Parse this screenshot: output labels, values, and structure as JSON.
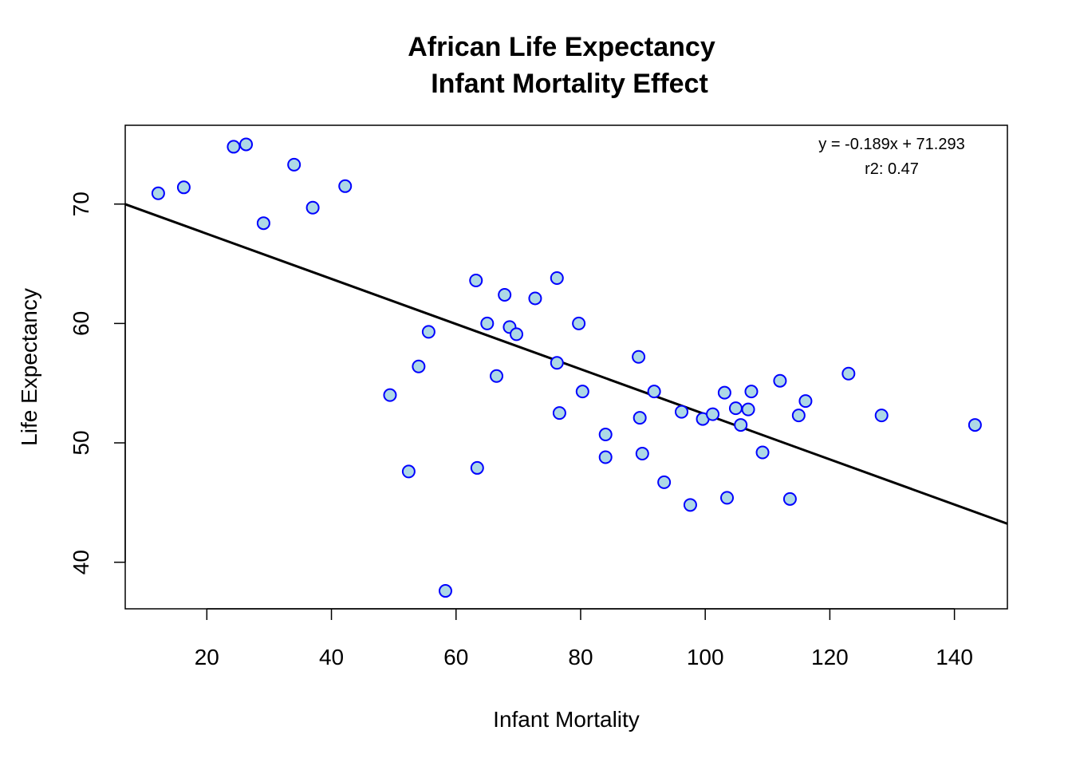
{
  "chart_data": {
    "type": "scatter",
    "title": "African Life Expectancy",
    "subtitle": "Infant Mortality Effect",
    "xlabel": "Infant Mortality",
    "ylabel": "Life Expectancy",
    "xlim": [
      6.9,
      148.5
    ],
    "ylim": [
      36.1,
      76.6
    ],
    "x_ticks": [
      20,
      40,
      60,
      80,
      100,
      120,
      140
    ],
    "y_ticks": [
      40,
      50,
      60,
      70
    ],
    "grid": false,
    "point_fill": "#add8e6",
    "point_stroke": "#0000ff",
    "line_color": "#000000",
    "regression": {
      "slope": -0.189,
      "intercept": 71.293
    },
    "annotations": {
      "equation": "y = -0.189x + 71.293",
      "r2": "r2: 0.47"
    },
    "points": [
      {
        "x": 12.2,
        "y": 70.9
      },
      {
        "x": 16.3,
        "y": 71.4
      },
      {
        "x": 24.3,
        "y": 74.8
      },
      {
        "x": 26.3,
        "y": 75.0
      },
      {
        "x": 29.1,
        "y": 68.4
      },
      {
        "x": 34.0,
        "y": 73.3
      },
      {
        "x": 37.0,
        "y": 69.7
      },
      {
        "x": 42.2,
        "y": 71.5
      },
      {
        "x": 49.4,
        "y": 54.0
      },
      {
        "x": 52.4,
        "y": 47.6
      },
      {
        "x": 54.0,
        "y": 56.4
      },
      {
        "x": 55.6,
        "y": 59.3
      },
      {
        "x": 58.3,
        "y": 37.6
      },
      {
        "x": 63.2,
        "y": 63.6
      },
      {
        "x": 63.4,
        "y": 47.9
      },
      {
        "x": 65.0,
        "y": 60.0
      },
      {
        "x": 66.5,
        "y": 55.6
      },
      {
        "x": 67.8,
        "y": 62.4
      },
      {
        "x": 68.6,
        "y": 59.7
      },
      {
        "x": 69.7,
        "y": 59.1
      },
      {
        "x": 72.7,
        "y": 62.1
      },
      {
        "x": 76.2,
        "y": 63.8
      },
      {
        "x": 76.2,
        "y": 56.7
      },
      {
        "x": 76.6,
        "y": 52.5
      },
      {
        "x": 79.7,
        "y": 60.0
      },
      {
        "x": 80.3,
        "y": 54.3
      },
      {
        "x": 84.0,
        "y": 50.7
      },
      {
        "x": 84.0,
        "y": 48.8
      },
      {
        "x": 89.3,
        "y": 57.2
      },
      {
        "x": 89.5,
        "y": 52.1
      },
      {
        "x": 89.9,
        "y": 49.1
      },
      {
        "x": 91.8,
        "y": 54.3
      },
      {
        "x": 93.4,
        "y": 46.7
      },
      {
        "x": 96.2,
        "y": 52.6
      },
      {
        "x": 97.6,
        "y": 44.8
      },
      {
        "x": 99.6,
        "y": 52.0
      },
      {
        "x": 101.2,
        "y": 52.4
      },
      {
        "x": 103.1,
        "y": 54.2
      },
      {
        "x": 103.5,
        "y": 45.4
      },
      {
        "x": 104.9,
        "y": 52.9
      },
      {
        "x": 105.7,
        "y": 51.5
      },
      {
        "x": 106.9,
        "y": 52.8
      },
      {
        "x": 107.4,
        "y": 54.3
      },
      {
        "x": 109.2,
        "y": 49.2
      },
      {
        "x": 112.0,
        "y": 55.2
      },
      {
        "x": 113.6,
        "y": 45.3
      },
      {
        "x": 115.0,
        "y": 52.3
      },
      {
        "x": 116.1,
        "y": 53.5
      },
      {
        "x": 123.0,
        "y": 55.8
      },
      {
        "x": 128.3,
        "y": 52.3
      },
      {
        "x": 143.3,
        "y": 51.5
      }
    ]
  }
}
